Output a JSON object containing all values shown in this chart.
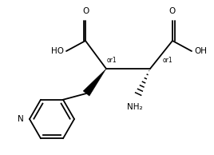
{
  "figsize": [
    2.68,
    1.94
  ],
  "dpi": 100,
  "bg": "#ffffff",
  "lc": "#000000",
  "lw": 1.3,
  "fs_label": 7.5,
  "fs_small": 5.5,
  "xlim": [
    0,
    268
  ],
  "ylim": [
    0,
    194
  ]
}
